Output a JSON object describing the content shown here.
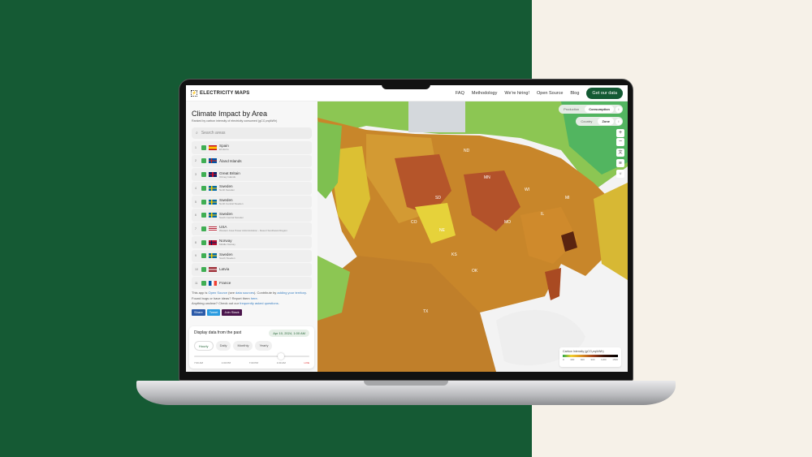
{
  "header": {
    "logo": "ELECTRICITY MAPS",
    "nav": [
      "FAQ",
      "Methodology",
      "We're hiring!",
      "Open Source",
      "Blog"
    ],
    "cta": "Get our data"
  },
  "sidebar": {
    "title": "Climate Impact by Area",
    "subtitle": "Ranked by carbon intensity of electricity consumed (gCO₂eq/kWh)",
    "search_placeholder": "Search areas",
    "items": [
      {
        "rank": "1",
        "name": "Spain",
        "zone": "El Hierro",
        "flag": "es"
      },
      {
        "rank": "2",
        "name": "Åland Islands",
        "zone": "",
        "flag": "ax"
      },
      {
        "rank": "3",
        "name": "Great Britain",
        "zone": "Orkney Islands",
        "flag": "gb"
      },
      {
        "rank": "4",
        "name": "Sweden",
        "zone": "North Sweden",
        "flag": "se"
      },
      {
        "rank": "5",
        "name": "Sweden",
        "zone": "North Central Sweden",
        "flag": "se"
      },
      {
        "rank": "6",
        "name": "Sweden",
        "zone": "South Central Sweden",
        "flag": "se"
      },
      {
        "rank": "7",
        "name": "USA",
        "zone": "Western Area Power Administration - Desert Southwest Region",
        "flag": "us"
      },
      {
        "rank": "8",
        "name": "Norway",
        "zone": "Middle Norway",
        "flag": "no"
      },
      {
        "rank": "9",
        "name": "Sweden",
        "zone": "South Sweden",
        "flag": "se"
      },
      {
        "rank": "10",
        "name": "Latvia",
        "zone": "",
        "flag": "lv"
      },
      {
        "rank": "11",
        "name": "France",
        "zone": "",
        "flag": "fr"
      }
    ],
    "info": {
      "l1a": "This app is ",
      "l1b": "Open Source",
      "l1c": " (see ",
      "l1d": "data sources",
      "l1e": "). Contribute by ",
      "l1f": "adding your territory",
      "l1g": ".",
      "l2a": "Found bugs or have ideas? Report them ",
      "l2b": "here",
      "l2c": ".",
      "l3a": "Anything unclear? Check out our ",
      "l3b": "frequently asked questions",
      "l3c": "."
    },
    "share": [
      "Share",
      "Tweet",
      "Join Slack"
    ]
  },
  "time_panel": {
    "title": "Display data from the past",
    "date": "Apr 10, 2024, 1:00 AM",
    "tabs": [
      "Hourly",
      "Daily",
      "Monthly",
      "Yearly"
    ],
    "active_tab": "Hourly",
    "ticks": [
      "7:00 AM",
      "1:00 PM",
      "7:00 PM",
      "1:00 AM",
      "LIVE"
    ],
    "live_color": "#e03030"
  },
  "map": {
    "toggle1": [
      "Production",
      "Consumption"
    ],
    "toggle1_active": "Consumption",
    "toggle2": [
      "Country",
      "Zone"
    ],
    "toggle2_active": "Zone",
    "info": "i",
    "zoom_in": "+",
    "zoom_out": "−",
    "labels": [
      "ND",
      "SD",
      "MN",
      "WI",
      "MI",
      "NE",
      "KS",
      "MO",
      "IL",
      "CO",
      "TX",
      "OK"
    ],
    "legend": {
      "title": "Carbon Intensity (gCO₂eq/kWh)",
      "ticks": [
        "0",
        "300",
        "600",
        "900",
        "1200",
        "1500"
      ]
    }
  },
  "colors": {
    "brand": "#135a33",
    "background_left": "#155a34",
    "background_right": "#f6f1e8"
  }
}
